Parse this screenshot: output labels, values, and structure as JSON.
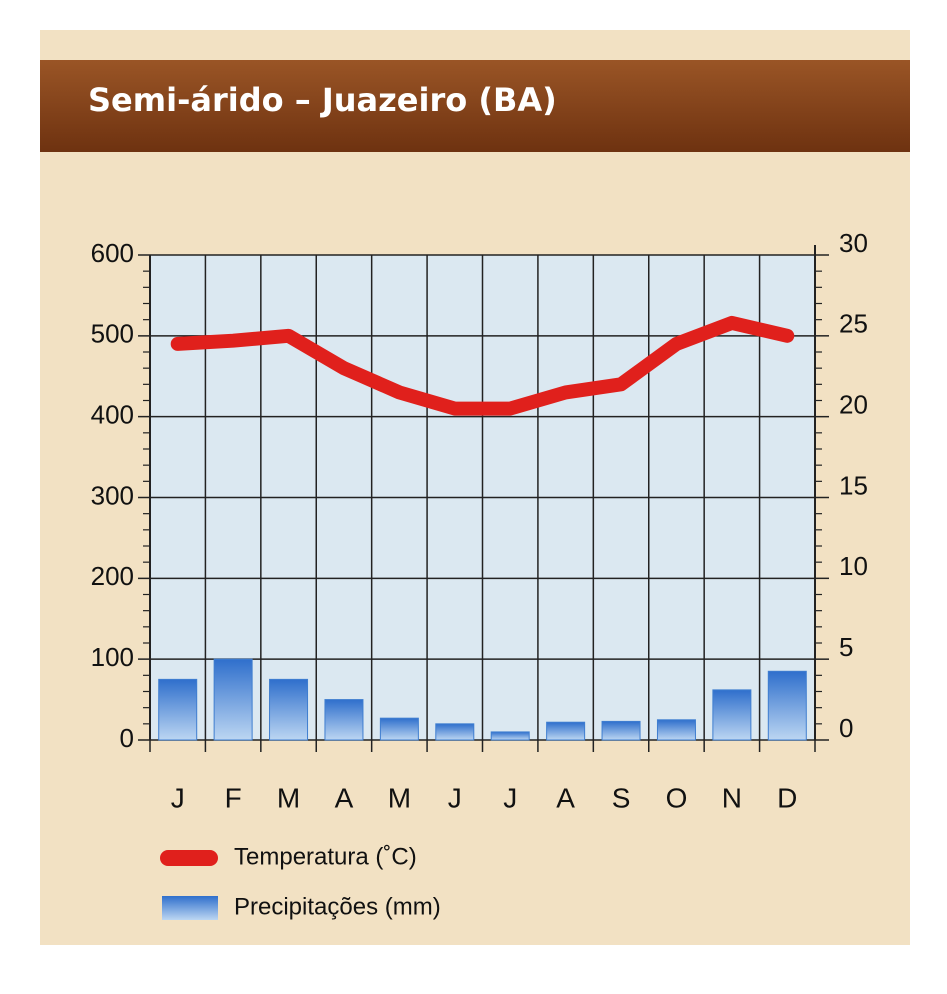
{
  "chart_data": {
    "type": "combo",
    "title": "Semi-árido – Juazeiro (BA)",
    "categories": [
      "J",
      "F",
      "M",
      "A",
      "M",
      "J",
      "J",
      "A",
      "S",
      "O",
      "N",
      "D"
    ],
    "series": [
      {
        "name": "Temperatura (˚C)",
        "type": "line",
        "axis": "y2",
        "color": "#e0201c",
        "values": [
          24.5,
          24.7,
          25,
          23,
          21.5,
          20.5,
          20.5,
          21.5,
          22,
          24.5,
          25.8,
          25
        ]
      },
      {
        "name": "Precipitações (mm)",
        "type": "bar",
        "axis": "y",
        "color": "#3f7ed0",
        "values": [
          75,
          100,
          75,
          50,
          27,
          20,
          10,
          22,
          23,
          25,
          62,
          85
        ]
      }
    ],
    "ylim": [
      0,
      600
    ],
    "yticks": [
      0,
      100,
      200,
      300,
      400,
      500,
      600
    ],
    "y2lim": [
      0,
      30
    ],
    "y2ticks": [
      0,
      5,
      10,
      15,
      20,
      25,
      30
    ],
    "grid": true
  }
}
